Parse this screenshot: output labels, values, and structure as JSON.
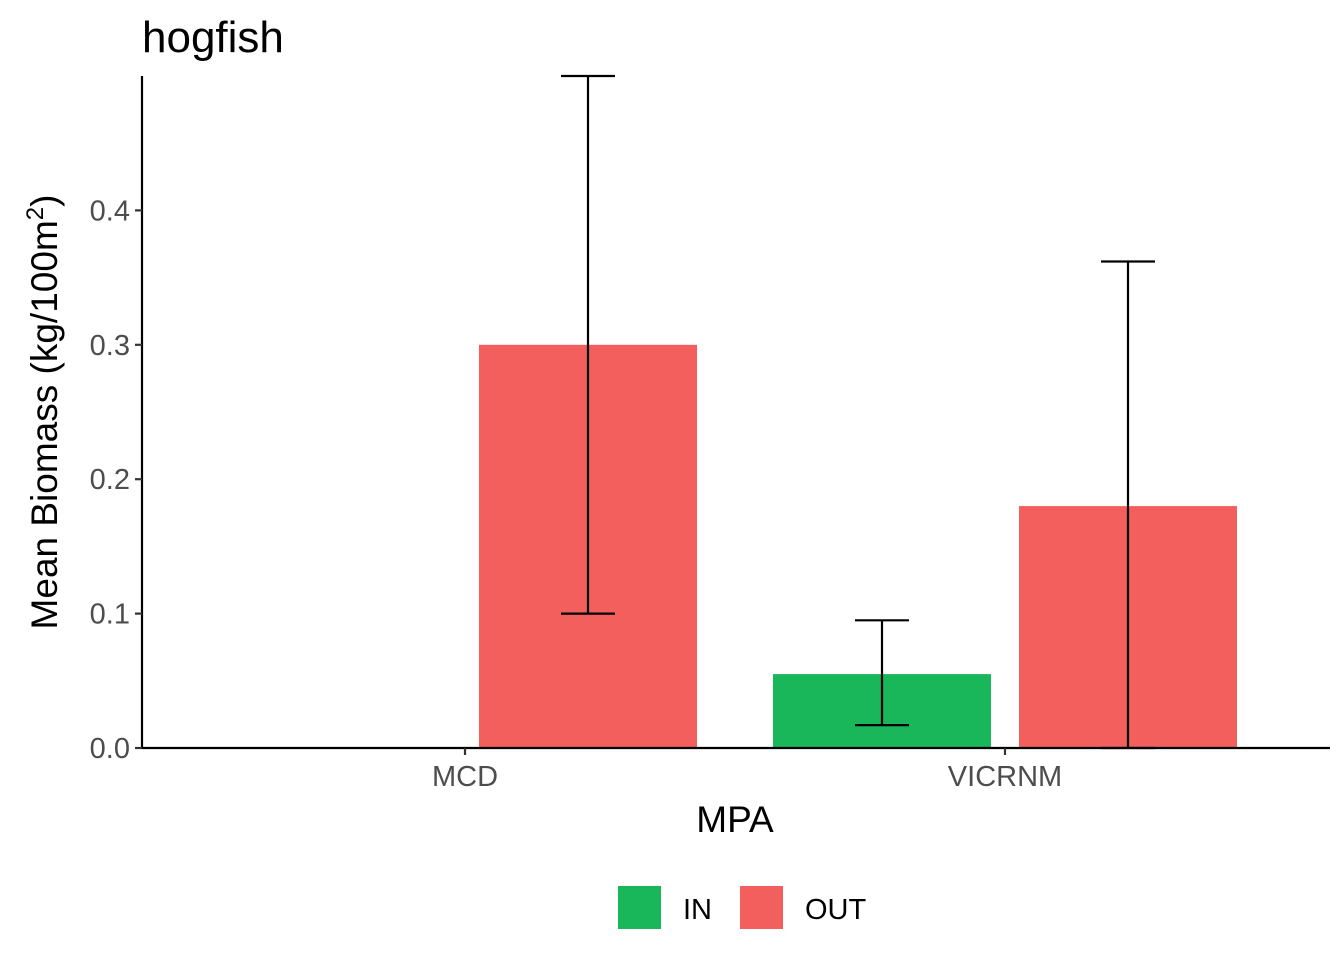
{
  "chart_data": {
    "type": "bar",
    "title": "hogfish",
    "xlabel": "MPA",
    "ylabel": "Mean Biomass (kg/100m",
    "ylabel_superscript": "2",
    "ylabel_suffix": ")",
    "categories": [
      "MCD",
      "VICRNM"
    ],
    "ylim": [
      0,
      0.5
    ],
    "y_ticks": [
      0.0,
      0.1,
      0.2,
      0.3,
      0.4
    ],
    "y_tick_labels": [
      "0.0",
      "0.1",
      "0.2",
      "0.3",
      "0.4"
    ],
    "grid": false,
    "legend_position": "bottom",
    "series": [
      {
        "name": "IN",
        "color": "#1ab65a",
        "values": [
          0.0,
          0.055
        ],
        "error_lower": [
          0.0,
          0.017
        ],
        "error_upper": [
          0.0,
          0.095
        ]
      },
      {
        "name": "OUT",
        "color": "#f25f5c",
        "values": [
          0.3,
          0.18
        ],
        "error_lower": [
          0.1,
          0.0
        ],
        "error_upper": [
          0.5,
          0.362
        ]
      }
    ]
  }
}
